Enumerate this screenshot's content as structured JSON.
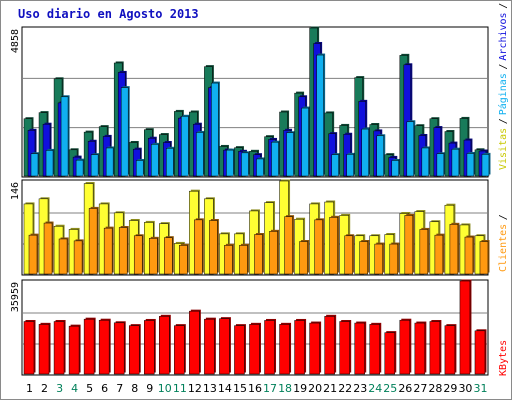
{
  "chart_data": {
    "type": "bar",
    "title": "Uso diario en Agosto 2013",
    "categories": [
      "1",
      "2",
      "3",
      "4",
      "5",
      "6",
      "7",
      "8",
      "9",
      "10",
      "11",
      "12",
      "13",
      "14",
      "15",
      "16",
      "17",
      "18",
      "19",
      "20",
      "21",
      "22",
      "23",
      "24",
      "25",
      "26",
      "27",
      "28",
      "29",
      "30",
      "31"
    ],
    "weekend_days": [
      "3",
      "4",
      "10",
      "11",
      "17",
      "18",
      "24",
      "25",
      "31"
    ],
    "panels": [
      {
        "ymax_label": "4858",
        "ymax": 4858,
        "series": [
          {
            "name": "Accesos",
            "color": "#187b5a",
            "values": [
              1880,
              2080,
              3190,
              860,
              1440,
              1620,
              3710,
              1100,
              1520,
              1360,
              2120,
              2100,
              3590,
              970,
              930,
              810,
              1290,
              2100,
              2720,
              4858,
              2070,
              1660,
              3230,
              1690,
              700,
              3960,
              1650,
              1880,
              1460,
              1890,
              860
            ]
          },
          {
            "name": "Archivos",
            "color": "#1010dd",
            "values": [
              1500,
              1700,
              2400,
              620,
              1140,
              1300,
              3400,
              880,
              1240,
              1100,
              1900,
              1700,
              2900,
              850,
              810,
              700,
              1200,
              1500,
              2600,
              4350,
              1390,
              1370,
              2450,
              1480,
              610,
              3650,
              1330,
              1590,
              1080,
              1180,
              820
            ]
          },
          {
            "name": "Páginas",
            "color": "#10b0f0",
            "values": [
              730,
              840,
              2600,
              520,
              700,
              920,
              2900,
              510,
              1040,
              910,
              1960,
              1430,
              3050,
              850,
              760,
              560,
              1110,
              1420,
              2230,
              3970,
              700,
              710,
              1540,
              1320,
              510,
              1780,
              920,
              730,
              880,
              740,
              710
            ]
          },
          {
            "name": "Visitas",
            "color": "#10b0f0",
            "values": []
          }
        ]
      },
      {
        "ymax_label": "146",
        "ymax": 146,
        "series": [
          {
            "name": "Visitas",
            "color": "#ffff33",
            "values": [
              110,
              118,
              75,
              70,
              142,
              110,
              96,
              84,
              81,
              79,
              48,
              130,
              118,
              63,
              63,
              99,
              112,
              146,
              86,
              110,
              113,
              92,
              60,
              60,
              62,
              95,
              98,
              82,
              108,
              77,
              60
            ]
          },
          {
            "name": "Clientes",
            "color": "#ff9910",
            "values": [
              61,
              80,
              55,
              52,
              103,
              72,
              73,
              60,
              56,
              57,
              45,
              85,
              84,
              45,
              45,
              62,
              67,
              90,
              51,
              85,
              89,
              60,
              51,
              47,
              47,
              92,
              70,
              61,
              78,
              58,
              51
            ]
          }
        ]
      },
      {
        "ymax_label": "35959",
        "ymax": 35959,
        "series": [
          {
            "name": "KBytes",
            "color": "#ff0000",
            "values": [
              20300,
              19200,
              20300,
              18500,
              21200,
              20800,
              19800,
              18700,
              20700,
              22300,
              18700,
              24300,
              21200,
              21400,
              18700,
              19200,
              20700,
              19200,
              20700,
              19700,
              22300,
              20300,
              19700,
              19200,
              16000,
              20800,
              19700,
              20300,
              18700,
              35959,
              16700
            ]
          }
        ]
      }
    ],
    "side_labels": [
      {
        "text": "Accesos",
        "color": "#187b5a"
      },
      {
        "text": "Archivos",
        "color": "#1010dd"
      },
      {
        "text": "Páginas",
        "color": "#10b0f0"
      },
      {
        "text": "Visitas",
        "color": "#c8c800"
      },
      {
        "text": "Clientes",
        "color": "#ff9910"
      },
      {
        "text": "KBytes",
        "color": "#ff0000"
      }
    ],
    "colors": {
      "frame": "#000000",
      "title": "#1010c0",
      "weekday_label": "#000000",
      "weekend_label": "#00805a",
      "grid": "#808080"
    }
  }
}
